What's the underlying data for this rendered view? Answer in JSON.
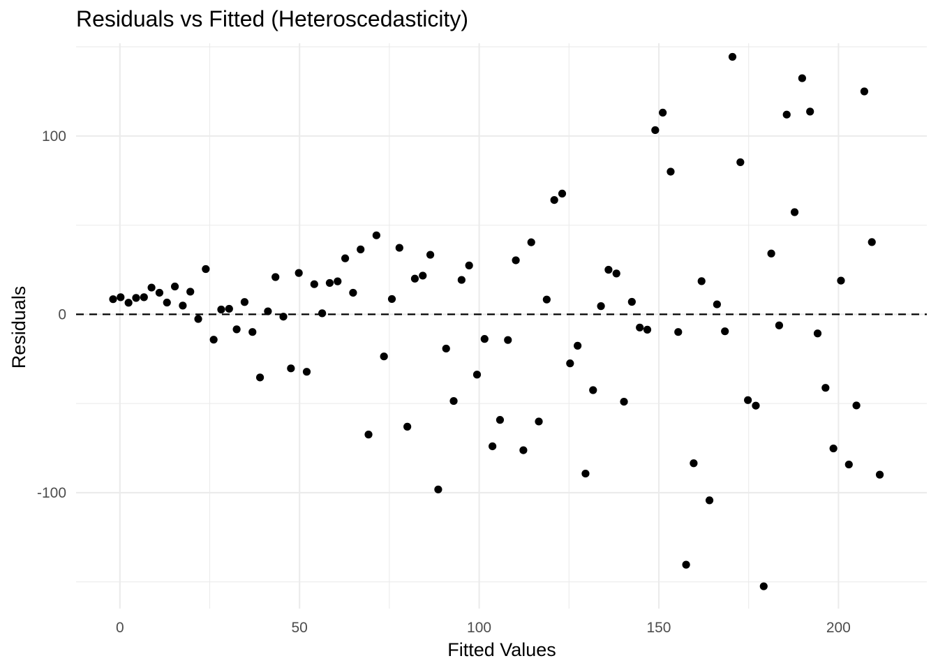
{
  "chart_data": {
    "type": "scatter",
    "title": "Residuals vs Fitted (Heteroscedasticity)",
    "xlabel": "Fitted Values",
    "ylabel": "Residuals",
    "xlim": [
      -12.2,
      224.6
    ],
    "ylim": [
      -165,
      152
    ],
    "x_ticks": [
      0,
      50,
      100,
      150,
      200
    ],
    "x_tick_labels": [
      "0",
      "50",
      "100",
      "150",
      "200"
    ],
    "y_ticks": [
      -100,
      0,
      100
    ],
    "y_tick_labels": [
      "-100",
      "0",
      "100"
    ],
    "x_minor": [
      25,
      75,
      125,
      175
    ],
    "y_minor": [
      -150,
      -50,
      50,
      150
    ],
    "reference_line": {
      "y": 0,
      "style": "dashed",
      "color": "#000000"
    },
    "grid": true,
    "legend": "none",
    "point_color": "#000000",
    "points": [
      {
        "x": -1.9,
        "y": 8.5
      },
      {
        "x": 0.2,
        "y": 9.6
      },
      {
        "x": 2.4,
        "y": 6.5
      },
      {
        "x": 4.5,
        "y": 9.2
      },
      {
        "x": 6.7,
        "y": 9.6
      },
      {
        "x": 8.8,
        "y": 15.0
      },
      {
        "x": 11.0,
        "y": 12.1
      },
      {
        "x": 13.1,
        "y": 6.6
      },
      {
        "x": 15.3,
        "y": 15.6
      },
      {
        "x": 17.5,
        "y": 4.9
      },
      {
        "x": 19.6,
        "y": 12.7
      },
      {
        "x": 21.8,
        "y": -2.6
      },
      {
        "x": 23.9,
        "y": 25.4
      },
      {
        "x": 26.1,
        "y": -14.2
      },
      {
        "x": 28.2,
        "y": 2.7
      },
      {
        "x": 30.4,
        "y": 3.1
      },
      {
        "x": 32.5,
        "y": -8.4
      },
      {
        "x": 34.7,
        "y": 6.9
      },
      {
        "x": 36.9,
        "y": -9.9
      },
      {
        "x": 39.0,
        "y": -35.4
      },
      {
        "x": 41.2,
        "y": 1.7
      },
      {
        "x": 43.3,
        "y": 20.9
      },
      {
        "x": 45.5,
        "y": -1.3
      },
      {
        "x": 47.6,
        "y": -30.3
      },
      {
        "x": 49.8,
        "y": 23.2
      },
      {
        "x": 52.0,
        "y": -32.2
      },
      {
        "x": 54.1,
        "y": 16.9
      },
      {
        "x": 56.3,
        "y": 0.6
      },
      {
        "x": 58.4,
        "y": 17.6
      },
      {
        "x": 60.6,
        "y": 18.5
      },
      {
        "x": 62.7,
        "y": 31.4
      },
      {
        "x": 64.9,
        "y": 12.1
      },
      {
        "x": 67.0,
        "y": 36.4
      },
      {
        "x": 69.2,
        "y": -67.4
      },
      {
        "x": 71.4,
        "y": 44.3
      },
      {
        "x": 73.5,
        "y": -23.6
      },
      {
        "x": 75.7,
        "y": 8.6
      },
      {
        "x": 77.8,
        "y": 37.3
      },
      {
        "x": 80.0,
        "y": -63.0
      },
      {
        "x": 82.1,
        "y": 20.0
      },
      {
        "x": 84.3,
        "y": 21.7
      },
      {
        "x": 86.4,
        "y": 33.4
      },
      {
        "x": 88.6,
        "y": -98.2
      },
      {
        "x": 90.8,
        "y": -19.2
      },
      {
        "x": 92.9,
        "y": -48.6
      },
      {
        "x": 95.1,
        "y": 19.3
      },
      {
        "x": 97.2,
        "y": 27.4
      },
      {
        "x": 99.4,
        "y": -33.8
      },
      {
        "x": 101.5,
        "y": -13.8
      },
      {
        "x": 103.7,
        "y": -74.0
      },
      {
        "x": 105.8,
        "y": -59.2
      },
      {
        "x": 108.0,
        "y": -14.4
      },
      {
        "x": 110.2,
        "y": 30.3
      },
      {
        "x": 112.3,
        "y": -76.2
      },
      {
        "x": 114.5,
        "y": 40.4
      },
      {
        "x": 116.6,
        "y": -60.1
      },
      {
        "x": 118.8,
        "y": 8.3
      },
      {
        "x": 120.9,
        "y": 64.1
      },
      {
        "x": 123.1,
        "y": 67.7
      },
      {
        "x": 125.3,
        "y": -27.5
      },
      {
        "x": 127.4,
        "y": -17.6
      },
      {
        "x": 129.6,
        "y": -89.3
      },
      {
        "x": 131.7,
        "y": -42.5
      },
      {
        "x": 133.9,
        "y": 4.6
      },
      {
        "x": 136.0,
        "y": 25.0
      },
      {
        "x": 138.2,
        "y": 22.9
      },
      {
        "x": 140.3,
        "y": -49.0
      },
      {
        "x": 142.5,
        "y": 7.0
      },
      {
        "x": 144.7,
        "y": -7.4
      },
      {
        "x": 146.8,
        "y": -8.6
      },
      {
        "x": 149.0,
        "y": 103.3
      },
      {
        "x": 151.1,
        "y": 113.1
      },
      {
        "x": 153.3,
        "y": 80.0
      },
      {
        "x": 155.4,
        "y": -9.9
      },
      {
        "x": 157.6,
        "y": -140.4
      },
      {
        "x": 159.7,
        "y": -83.5
      },
      {
        "x": 161.9,
        "y": 18.6
      },
      {
        "x": 164.1,
        "y": -104.3
      },
      {
        "x": 166.2,
        "y": 5.6
      },
      {
        "x": 168.4,
        "y": -9.5
      },
      {
        "x": 170.5,
        "y": 144.4
      },
      {
        "x": 172.7,
        "y": 85.3
      },
      {
        "x": 174.8,
        "y": -48.1
      },
      {
        "x": 177.0,
        "y": -51.2
      },
      {
        "x": 179.2,
        "y": -152.5
      },
      {
        "x": 181.3,
        "y": 34.1
      },
      {
        "x": 183.5,
        "y": -6.2
      },
      {
        "x": 185.6,
        "y": 112.0
      },
      {
        "x": 187.8,
        "y": 57.3
      },
      {
        "x": 189.9,
        "y": 132.4
      },
      {
        "x": 192.1,
        "y": 113.7
      },
      {
        "x": 194.2,
        "y": -10.7
      },
      {
        "x": 196.4,
        "y": -41.2
      },
      {
        "x": 198.6,
        "y": -75.2
      },
      {
        "x": 200.7,
        "y": 18.9
      },
      {
        "x": 202.9,
        "y": -84.2
      },
      {
        "x": 205.0,
        "y": -51.1
      },
      {
        "x": 207.2,
        "y": 125.0
      },
      {
        "x": 209.3,
        "y": 40.5
      },
      {
        "x": 211.5,
        "y": -89.9
      }
    ]
  }
}
